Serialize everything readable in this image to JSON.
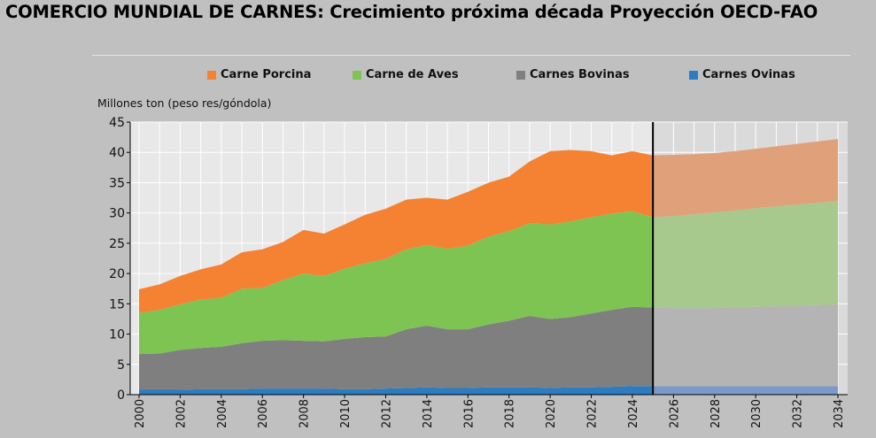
{
  "title": "COMERCIO MUNDIAL DE CARNES: Crecimiento próxima década Proyección OECD-FAO",
  "colors": {
    "background": "#c0c0c0",
    "plot_historical": "#e8e8e8",
    "plot_projection": "#dadada",
    "Carne Porcina": "#f58132",
    "Carne de Aves": "#7ec453",
    "Carnes Bovinas": "#7f7f7f",
    "Carnes Ovinas": "#2b7cc0",
    "Carne Porcina_proj": "#e0a07a",
    "Carne de Aves_proj": "#a7c98d",
    "Carnes Bovinas_proj": "#b4b4b4",
    "Carnes Ovinas_proj": "#7b9ac9",
    "divider": "#000000"
  },
  "chart_data": {
    "type": "area",
    "stacked": true,
    "ylabel": "Millones ton (peso res/góndola)",
    "xlabel": "",
    "ylim": [
      0,
      45
    ],
    "yticks": [
      0,
      5,
      10,
      15,
      20,
      25,
      30,
      35,
      40,
      45
    ],
    "xlim": [
      2000,
      2034
    ],
    "xticks": [
      "2000",
      "2002",
      "2004",
      "2006",
      "2008",
      "2010",
      "2012",
      "2014",
      "2016",
      "2018",
      "2020",
      "2022",
      "2024",
      "2026",
      "2028",
      "2030",
      "2032",
      "2034"
    ],
    "projection_start": 2025,
    "grid": true,
    "legend_position": "top",
    "x": [
      2000,
      2001,
      2002,
      2003,
      2004,
      2005,
      2006,
      2007,
      2008,
      2009,
      2010,
      2011,
      2012,
      2013,
      2014,
      2015,
      2016,
      2017,
      2018,
      2019,
      2020,
      2021,
      2022,
      2023,
      2024,
      2025,
      2026,
      2027,
      2028,
      2029,
      2030,
      2031,
      2032,
      2033,
      2034
    ],
    "series": [
      {
        "name": "Carnes Ovinas",
        "values": [
          0.8,
          0.8,
          0.8,
          0.9,
          0.9,
          0.9,
          1.0,
          1.0,
          1.0,
          1.0,
          0.9,
          0.9,
          1.0,
          1.1,
          1.2,
          1.1,
          1.1,
          1.2,
          1.2,
          1.2,
          1.1,
          1.2,
          1.2,
          1.3,
          1.4,
          1.4,
          1.4,
          1.4,
          1.4,
          1.4,
          1.4,
          1.4,
          1.4,
          1.4,
          1.4
        ]
      },
      {
        "name": "Carnes Bovinas",
        "values": [
          5.9,
          6.0,
          6.6,
          6.8,
          7.0,
          7.6,
          7.9,
          8.0,
          7.9,
          7.8,
          8.3,
          8.6,
          8.6,
          9.7,
          10.2,
          9.7,
          9.7,
          10.4,
          11.0,
          11.8,
          11.4,
          11.6,
          12.2,
          12.7,
          13.1,
          13.0,
          12.9,
          12.9,
          12.9,
          13.0,
          13.1,
          13.2,
          13.3,
          13.4,
          13.5
        ]
      },
      {
        "name": "Carne de Aves",
        "values": [
          6.8,
          7.2,
          7.5,
          8.0,
          8.1,
          9.0,
          8.7,
          9.9,
          11.1,
          10.8,
          11.6,
          12.2,
          12.8,
          13.2,
          13.3,
          13.3,
          13.8,
          14.5,
          14.8,
          15.3,
          15.6,
          15.8,
          15.9,
          15.9,
          15.8,
          14.9,
          15.2,
          15.5,
          15.8,
          16.0,
          16.3,
          16.5,
          16.7,
          16.9,
          17.1
        ]
      },
      {
        "name": "Carne Porcina",
        "values": [
          3.9,
          4.2,
          4.7,
          5.0,
          5.5,
          6.0,
          6.4,
          6.3,
          7.2,
          7.0,
          7.3,
          8.0,
          8.3,
          8.2,
          7.8,
          8.1,
          8.9,
          8.9,
          9.0,
          10.2,
          12.1,
          11.8,
          10.9,
          9.6,
          9.9,
          10.2,
          10.1,
          9.9,
          9.8,
          9.8,
          9.8,
          9.9,
          10.0,
          10.1,
          10.2
        ]
      }
    ]
  },
  "legend": [
    {
      "label": "Carne Porcina"
    },
    {
      "label": "Carne de Aves"
    },
    {
      "label": "Carnes Bovinas"
    },
    {
      "label": "Carnes Ovinas"
    }
  ]
}
